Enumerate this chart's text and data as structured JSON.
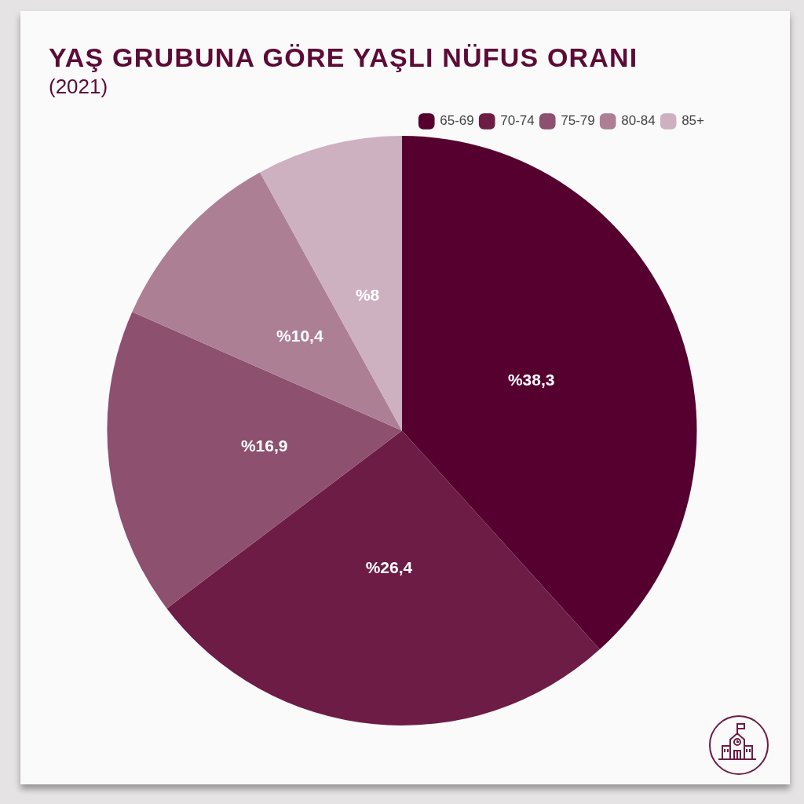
{
  "chart_data": {
    "type": "pie",
    "title": "YAŞ GRUBUNA GÖRE YAŞLI NÜFUS ORANI",
    "subtitle": "(2021)",
    "categories": [
      "65-69",
      "70-74",
      "75-79",
      "80-84",
      "85+"
    ],
    "values": [
      38.3,
      26.4,
      16.9,
      10.4,
      8
    ],
    "colors": [
      "#560030",
      "#6d1c46",
      "#8e506f",
      "#ad7f95",
      "#ceb1c1"
    ],
    "value_labels": [
      "%38,3",
      "%26,4",
      "%16,9",
      "%10,4",
      "%8"
    ],
    "legend": "top right"
  }
}
